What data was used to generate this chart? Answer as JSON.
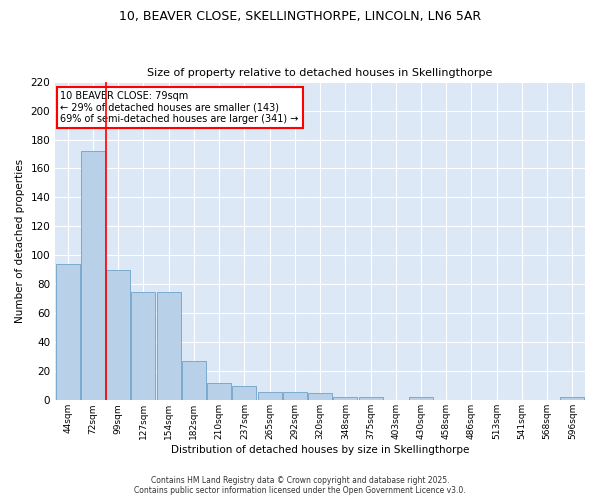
{
  "title1": "10, BEAVER CLOSE, SKELLINGTHORPE, LINCOLN, LN6 5AR",
  "title2": "Size of property relative to detached houses in Skellingthorpe",
  "xlabel": "Distribution of detached houses by size in Skellingthorpe",
  "ylabel": "Number of detached properties",
  "categories": [
    "44sqm",
    "72sqm",
    "99sqm",
    "127sqm",
    "154sqm",
    "182sqm",
    "210sqm",
    "237sqm",
    "265sqm",
    "292sqm",
    "320sqm",
    "348sqm",
    "375sqm",
    "403sqm",
    "430sqm",
    "458sqm",
    "486sqm",
    "513sqm",
    "541sqm",
    "568sqm",
    "596sqm"
  ],
  "values": [
    94,
    172,
    90,
    75,
    75,
    27,
    12,
    10,
    6,
    6,
    5,
    2,
    2,
    0,
    2,
    0,
    0,
    0,
    0,
    0,
    2
  ],
  "bar_color": "#b8d0e8",
  "bar_edge_color": "#7aaacf",
  "figure_background": "#ffffff",
  "axes_background": "#dce8f5",
  "grid_color": "#ffffff",
  "red_line_x": 1.5,
  "annotation_text": "10 BEAVER CLOSE: 79sqm\n← 29% of detached houses are smaller (143)\n69% of semi-detached houses are larger (341) →",
  "annotation_box_facecolor": "white",
  "annotation_box_edgecolor": "red",
  "ylim": [
    0,
    220
  ],
  "yticks": [
    0,
    20,
    40,
    60,
    80,
    100,
    120,
    140,
    160,
    180,
    200,
    220
  ],
  "footer1": "Contains HM Land Registry data © Crown copyright and database right 2025.",
  "footer2": "Contains public sector information licensed under the Open Government Licence v3.0."
}
